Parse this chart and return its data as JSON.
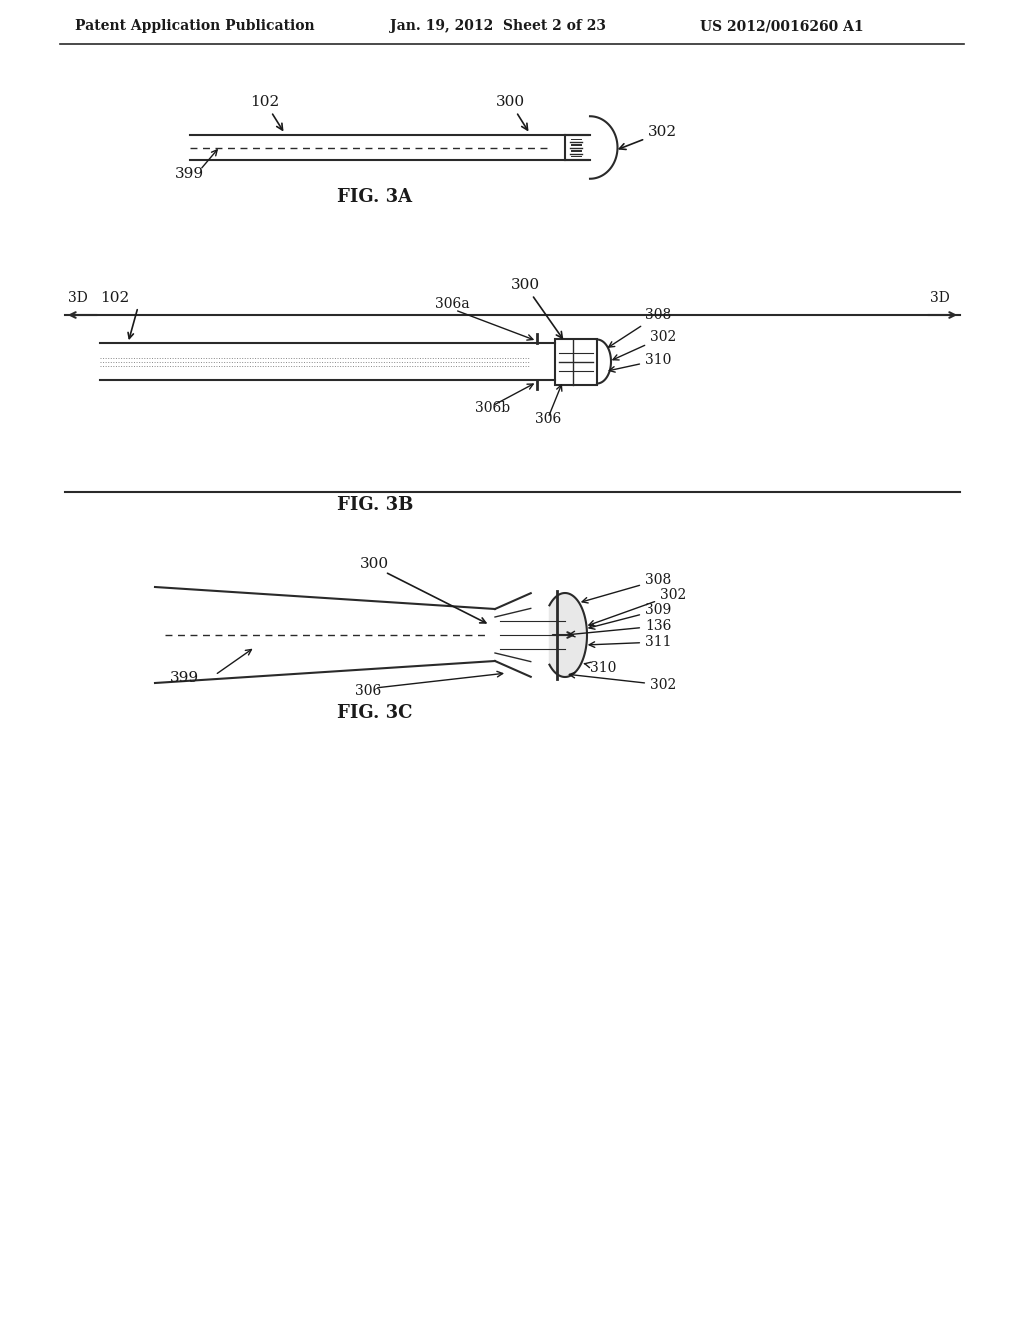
{
  "bg_color": "#ffffff",
  "header_left": "Patent Application Publication",
  "header_mid": "Jan. 19, 2012  Sheet 2 of 23",
  "header_right": "US 2012/0016260 A1",
  "fig3a_label": "FIG. 3A",
  "fig3b_label": "FIG. 3B",
  "fig3c_label": "FIG. 3C",
  "text_color": "#1a1a1a",
  "line_color": "#2a2a2a",
  "gray_color": "#888888"
}
